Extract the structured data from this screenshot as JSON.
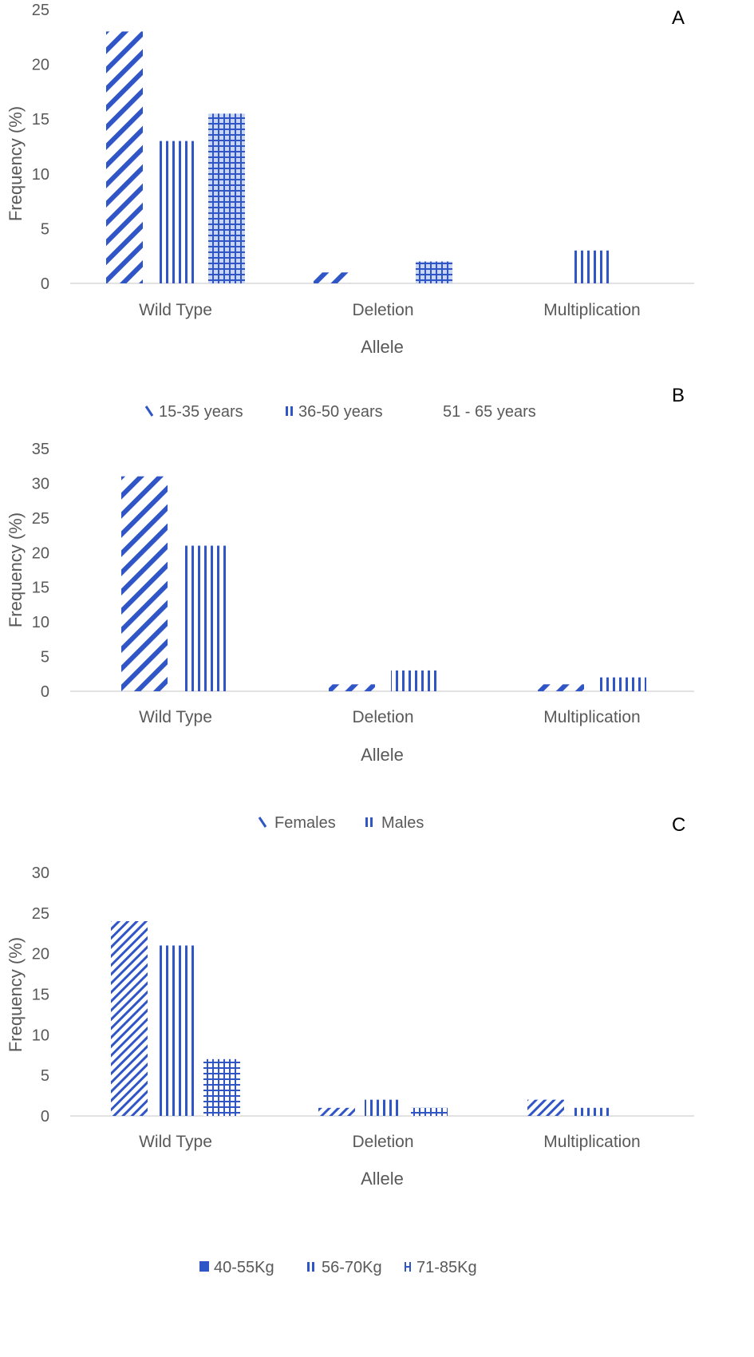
{
  "colors": {
    "bar": "#2f55c7",
    "axis": "#d9d9d9",
    "text": "#595959",
    "panel_letter": "#000000"
  },
  "chart_data": [
    {
      "panel_label": "A",
      "type": "bar",
      "categories": [
        "Wild Type",
        "Deletion",
        "Multiplication"
      ],
      "series": [
        {
          "name": "15-35 years",
          "values": [
            23,
            1,
            0
          ],
          "pattern": "diagonal-wide"
        },
        {
          "name": "36-50 years",
          "values": [
            13,
            0,
            3
          ],
          "pattern": "vertical"
        },
        {
          "name": "51 - 65 years",
          "values": [
            15.5,
            2,
            0
          ],
          "pattern": "grid-light"
        }
      ],
      "xlabel": "Allele",
      "ylabel": "Frequency (%)",
      "ylim": [
        0,
        25
      ],
      "yticks": [
        "0",
        "5",
        "10",
        "15",
        "20",
        "25"
      ],
      "grid": false,
      "legend_position": "bottom"
    },
    {
      "panel_label": "B",
      "type": "bar",
      "categories": [
        "Wild Type",
        "Deletion",
        "Multiplication"
      ],
      "series": [
        {
          "name": "Females",
          "values": [
            31,
            1,
            1
          ],
          "pattern": "diagonal-wide"
        },
        {
          "name": "Males",
          "values": [
            21,
            3,
            2
          ],
          "pattern": "vertical"
        }
      ],
      "xlabel": "Allele",
      "ylabel": "Frequency (%)",
      "ylim": [
        0,
        35
      ],
      "yticks": [
        "0",
        "5",
        "10",
        "15",
        "20",
        "25",
        "30",
        "35"
      ],
      "grid": false,
      "legend_position": "bottom"
    },
    {
      "panel_label": "C",
      "type": "bar",
      "categories": [
        "Wild Type",
        "Deletion",
        "Multiplication"
      ],
      "series": [
        {
          "name": "40-55Kg",
          "values": [
            24,
            1,
            2
          ],
          "pattern": "diagonal-dense"
        },
        {
          "name": "56-70Kg",
          "values": [
            21,
            2,
            1
          ],
          "pattern": "vertical"
        },
        {
          "name": "71-85Kg",
          "values": [
            7,
            1,
            0
          ],
          "pattern": "grid"
        }
      ],
      "xlabel": "Allele",
      "ylabel": "Frequency (%)",
      "ylim": [
        0,
        30
      ],
      "yticks": [
        "0",
        "5",
        "10",
        "15",
        "20",
        "25",
        "30"
      ],
      "grid": false,
      "legend_position": "bottom"
    }
  ]
}
